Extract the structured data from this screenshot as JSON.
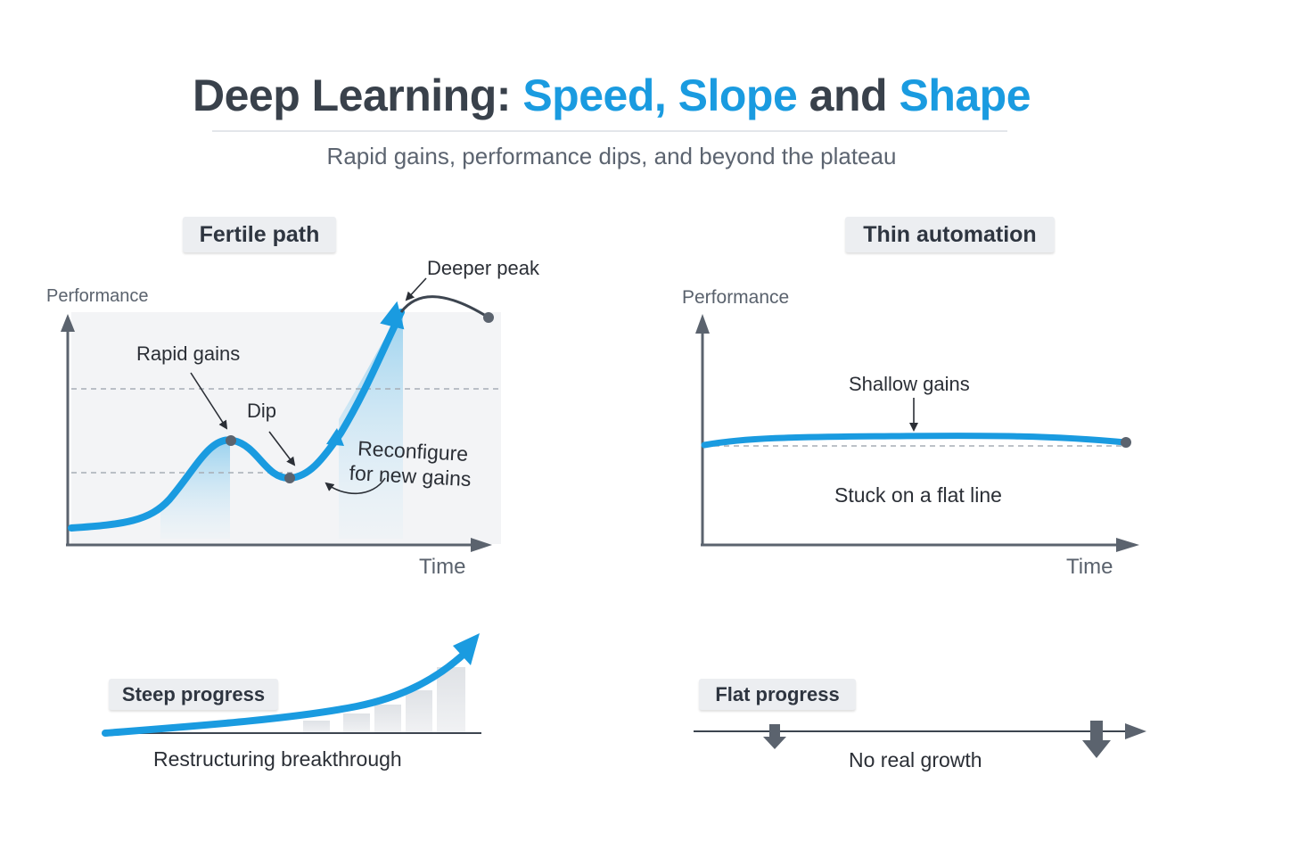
{
  "header": {
    "title_part1": "Deep Learning: ",
    "title_part2": "Speed, Slope",
    "title_part3": " and ",
    "title_part4": "Shape",
    "subtitle": "Rapid gains, performance dips, and beyond the plateau"
  },
  "left_panel": {
    "tag": "Fertile path",
    "y_axis_label": "Performance",
    "x_axis_label": "Time",
    "annotations": {
      "rapid_gains": "Rapid gains",
      "dip": "Dip",
      "reconfigure_line1": "Reconfigure",
      "reconfigure_line2": "for new gains",
      "deeper_peak": "Deeper peak"
    }
  },
  "right_panel": {
    "tag": "Thin automation",
    "y_axis_label": "Performance",
    "x_axis_label": "Time",
    "annotations": {
      "shallow_gains": "Shallow gains",
      "stuck": "Stuck on a flat line"
    }
  },
  "bottom_left": {
    "tag": "Steep progress",
    "caption": "Restructuring breakthrough"
  },
  "bottom_right": {
    "tag": "Flat progress",
    "caption": "No real growth"
  },
  "colors": {
    "accent_blue": "#1a9be0",
    "axis_gray": "#5b636e",
    "dark_text": "#39414b"
  }
}
